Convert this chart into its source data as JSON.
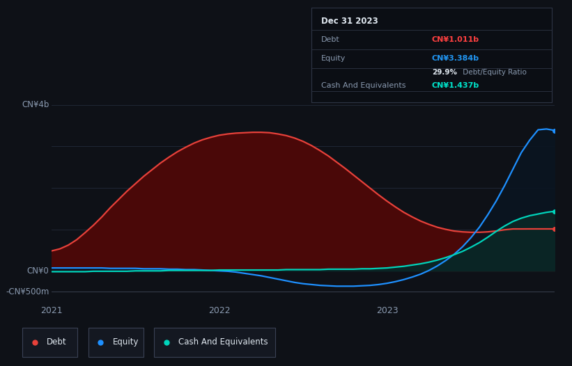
{
  "bg_color": "#0e1117",
  "title": "Dec 31 2023",
  "table_debt_value": "CN¥1.011b",
  "table_debt_color": "#ff4040",
  "table_equity_value": "CN¥3.384b",
  "table_equity_color": "#2196f3",
  "table_ratio": "29.9%",
  "table_ratio_label": " Debt/Equity Ratio",
  "table_cash_value": "CN¥1.437b",
  "table_cash_color": "#00e5cc",
  "ylabel_top": "CN¥4b",
  "ylabel_zero": "CN¥0",
  "ylabel_bottom": "-CN¥500m",
  "xtick_labels": [
    "2021",
    "2022",
    "2023"
  ],
  "xtick_positions": [
    0.0,
    1.0,
    2.0
  ],
  "ylim_top": 4.5,
  "ylim_bottom": -0.75,
  "y_zero": 0.0,
  "y_top_line": 4.0,
  "y_bottom_line": -0.5,
  "debt_color": "#e8413a",
  "equity_color": "#1e90ff",
  "cash_color": "#00d4bb",
  "debt_fill": "#4a0808",
  "cash_fill": "#0a2525",
  "grid_color": "#232b3a",
  "x": [
    0.0,
    0.05,
    0.1,
    0.15,
    0.2,
    0.25,
    0.3,
    0.35,
    0.4,
    0.45,
    0.5,
    0.55,
    0.6,
    0.65,
    0.7,
    0.75,
    0.8,
    0.85,
    0.9,
    0.95,
    1.0,
    1.05,
    1.1,
    1.15,
    1.2,
    1.25,
    1.3,
    1.35,
    1.4,
    1.45,
    1.5,
    1.55,
    1.6,
    1.65,
    1.7,
    1.75,
    1.8,
    1.85,
    1.9,
    1.95,
    2.0,
    2.05,
    2.1,
    2.15,
    2.2,
    2.25,
    2.3,
    2.35,
    2.4,
    2.45,
    2.5,
    2.55,
    2.6,
    2.65,
    2.7,
    2.75,
    2.8,
    2.85,
    2.9,
    2.95,
    3.0
  ],
  "debt_y": [
    0.48,
    0.53,
    0.62,
    0.75,
    0.92,
    1.1,
    1.3,
    1.52,
    1.72,
    1.92,
    2.1,
    2.28,
    2.44,
    2.6,
    2.74,
    2.87,
    2.98,
    3.08,
    3.16,
    3.22,
    3.27,
    3.3,
    3.32,
    3.33,
    3.34,
    3.34,
    3.33,
    3.3,
    3.26,
    3.2,
    3.12,
    3.02,
    2.9,
    2.77,
    2.62,
    2.47,
    2.31,
    2.15,
    1.99,
    1.83,
    1.68,
    1.54,
    1.41,
    1.3,
    1.2,
    1.12,
    1.05,
    1.0,
    0.96,
    0.94,
    0.93,
    0.93,
    0.94,
    0.96,
    0.99,
    1.01,
    1.01,
    1.011,
    1.011,
    1.011,
    1.011
  ],
  "equity_y": [
    0.07,
    0.07,
    0.07,
    0.07,
    0.07,
    0.07,
    0.07,
    0.06,
    0.06,
    0.06,
    0.06,
    0.05,
    0.05,
    0.05,
    0.04,
    0.04,
    0.03,
    0.03,
    0.02,
    0.01,
    0.0,
    -0.01,
    -0.03,
    -0.06,
    -0.09,
    -0.12,
    -0.16,
    -0.2,
    -0.24,
    -0.28,
    -0.31,
    -0.33,
    -0.35,
    -0.36,
    -0.37,
    -0.37,
    -0.37,
    -0.36,
    -0.35,
    -0.33,
    -0.3,
    -0.26,
    -0.21,
    -0.15,
    -0.08,
    0.01,
    0.12,
    0.25,
    0.4,
    0.58,
    0.8,
    1.05,
    1.35,
    1.68,
    2.05,
    2.45,
    2.85,
    3.15,
    3.4,
    3.42,
    3.384
  ],
  "cash_y": [
    -0.02,
    -0.02,
    -0.02,
    -0.02,
    -0.02,
    -0.01,
    -0.01,
    -0.01,
    -0.01,
    -0.01,
    0.0,
    0.0,
    0.0,
    0.0,
    0.01,
    0.01,
    0.01,
    0.01,
    0.01,
    0.01,
    0.02,
    0.02,
    0.02,
    0.02,
    0.02,
    0.02,
    0.02,
    0.02,
    0.03,
    0.03,
    0.03,
    0.03,
    0.03,
    0.04,
    0.04,
    0.04,
    0.04,
    0.05,
    0.05,
    0.06,
    0.07,
    0.09,
    0.11,
    0.14,
    0.17,
    0.21,
    0.26,
    0.32,
    0.39,
    0.47,
    0.57,
    0.68,
    0.81,
    0.95,
    1.08,
    1.19,
    1.27,
    1.33,
    1.37,
    1.41,
    1.437
  ],
  "legend_items": [
    {
      "label": "Debt",
      "color": "#e8413a"
    },
    {
      "label": "Equity",
      "color": "#1e90ff"
    },
    {
      "label": "Cash And Equivalents",
      "color": "#00d4bb"
    }
  ]
}
